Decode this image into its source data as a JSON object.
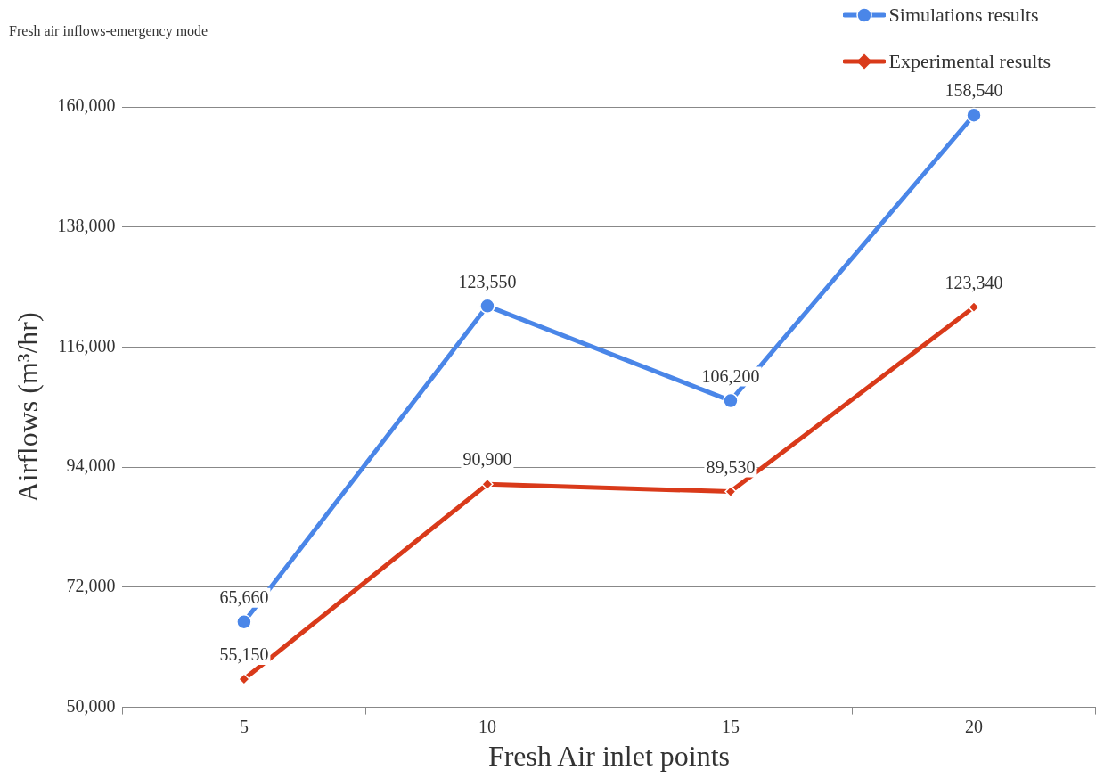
{
  "chart_data": {
    "type": "line",
    "title": "Fresh air inflows-emergency mode",
    "xlabel": "Fresh Air inlet points",
    "ylabel": "Airflows (m³/hr)",
    "categories": [
      "5",
      "10",
      "15",
      "20"
    ],
    "series": [
      {
        "name": "Simulations results",
        "color": "#4a86e8",
        "marker": "circle",
        "values": [
          65660,
          123550,
          106200,
          158540
        ],
        "value_labels": [
          "65,660",
          "123,550",
          "106,200",
          "158,540"
        ]
      },
      {
        "name": "Experimental results",
        "color": "#d93a1a",
        "marker": "diamond",
        "values": [
          55150,
          90900,
          89530,
          123340
        ],
        "value_labels": [
          "55,150",
          "90,900",
          "89,530",
          "123,340"
        ]
      }
    ],
    "ylim": [
      50000,
      160000
    ],
    "yticks": [
      {
        "value": 50000,
        "label": "50,000"
      },
      {
        "value": 72000,
        "label": "72,000"
      },
      {
        "value": 94000,
        "label": "94,000"
      },
      {
        "value": 116000,
        "label": "116,000"
      },
      {
        "value": 138000,
        "label": "138,000"
      },
      {
        "value": 160000,
        "label": "160,000"
      }
    ],
    "grid": "y",
    "legend": "top right",
    "line_style": "solid"
  }
}
